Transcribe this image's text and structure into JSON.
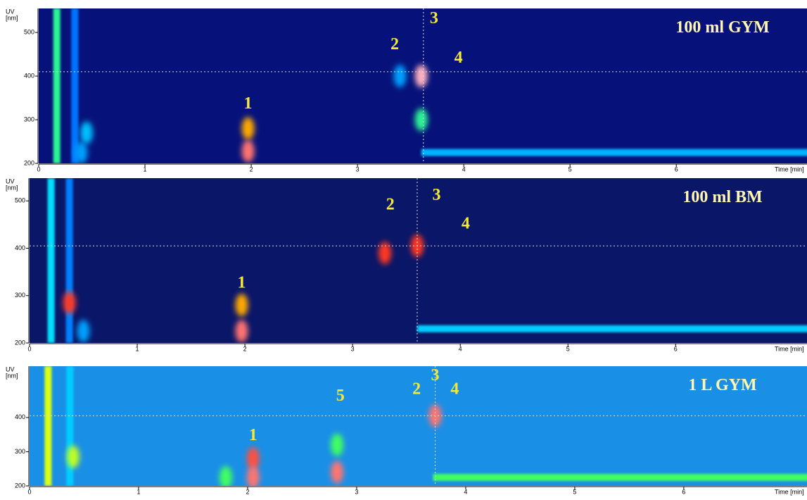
{
  "chart_data": [
    {
      "type": "heatmap",
      "title": "100 ml GYM",
      "xlabel": "Time [min]",
      "ylabel": "UV",
      "yunit": "[nm]",
      "background": "#06127a",
      "xlim": [
        0,
        7.23
      ],
      "ylim": [
        200,
        555
      ],
      "xticks": [
        0,
        1,
        2,
        3,
        4,
        5,
        6
      ],
      "yticks": [
        200,
        300,
        400,
        500
      ],
      "bands": {
        "time": [
          0.17,
          0.34
        ],
        "intensity": [
          0.55,
          0.28
        ]
      },
      "spots": {
        "time": [
          1.97,
          1.97,
          3.6,
          3.6,
          3.4,
          0.45,
          0.4
        ],
        "nm": [
          280,
          228,
          400,
          300,
          400,
          270,
          225
        ],
        "intensity": [
          0.8,
          0.95,
          1.0,
          0.55,
          0.35,
          0.4,
          0.35
        ]
      },
      "baseline": {
        "nm": 225,
        "from": 3.6,
        "intensity": 0.38
      },
      "cursor": {
        "time": 3.62,
        "nm": 410
      },
      "peaks": {
        "labels": [
          "1",
          "2",
          "3",
          "4"
        ],
        "time": [
          1.97,
          3.35,
          3.72,
          3.95
        ],
        "nm": [
          335,
          470,
          530,
          440
        ]
      }
    },
    {
      "type": "heatmap",
      "title": "100 ml BM",
      "xlabel": "Time [min]",
      "ylabel": "UV",
      "yunit": "[nm]",
      "background": "#0a1668",
      "xlim": [
        0,
        7.22
      ],
      "ylim": [
        200,
        548
      ],
      "xticks": [
        0,
        1,
        2,
        3,
        4,
        5,
        6
      ],
      "yticks": [
        200,
        300,
        400,
        500
      ],
      "bands": {
        "time": [
          0.2,
          0.37
        ],
        "intensity": [
          0.45,
          0.3
        ]
      },
      "spots": {
        "time": [
          0.37,
          1.97,
          1.97,
          3.3,
          3.6,
          0.5
        ],
        "nm": [
          285,
          280,
          225,
          390,
          405,
          225
        ],
        "intensity": [
          0.9,
          0.8,
          0.95,
          0.9,
          0.9,
          0.35
        ]
      },
      "baseline": {
        "nm": 230,
        "from": 3.6,
        "intensity": 0.42
      },
      "cursor": {
        "time": 3.6,
        "nm": 405
      },
      "peaks": {
        "labels": [
          "1",
          "2",
          "3",
          "4"
        ],
        "time": [
          1.97,
          3.35,
          3.78,
          4.05
        ],
        "nm": [
          325,
          490,
          510,
          450
        ]
      }
    },
    {
      "type": "heatmap",
      "title": "1 L GYM",
      "xlabel": "Time [min]",
      "ylabel": "UV",
      "yunit": "[nm]",
      "background": "#1a8fe6",
      "xlim": [
        0,
        7.13
      ],
      "ylim": [
        200,
        550
      ],
      "xticks": [
        0,
        1,
        2,
        3,
        4,
        5,
        6
      ],
      "yticks": [
        200,
        300,
        400
      ],
      "bands": {
        "time": [
          0.17,
          0.37
        ],
        "intensity": [
          0.72,
          0.42
        ]
      },
      "spots": {
        "time": [
          0.4,
          2.05,
          2.05,
          2.82,
          2.82,
          3.72,
          1.8
        ],
        "nm": [
          285,
          280,
          225,
          240,
          320,
          405,
          225
        ],
        "intensity": [
          0.7,
          0.92,
          0.95,
          0.95,
          0.6,
          0.95,
          0.6
        ]
      },
      "baseline": {
        "nm": 225,
        "from": 3.7,
        "intensity": 0.6
      },
      "cursor": {
        "time": 3.72,
        "nm": 405
      },
      "peaks": {
        "labels": [
          "1",
          "5",
          "2",
          "3",
          "4"
        ],
        "time": [
          2.05,
          2.85,
          3.55,
          3.72,
          3.9
        ],
        "nm": [
          345,
          460,
          480,
          520,
          480
        ]
      }
    }
  ]
}
